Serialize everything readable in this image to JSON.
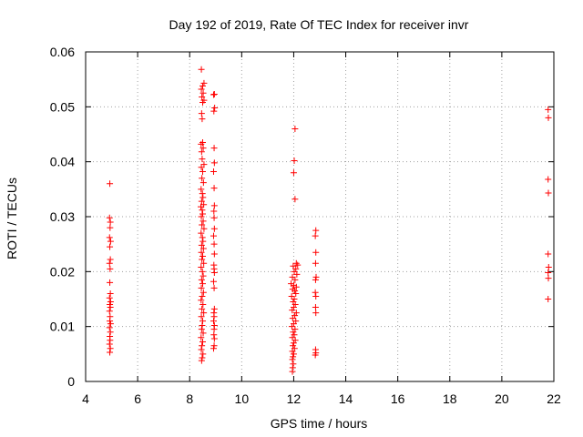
{
  "chart_data": {
    "type": "scatter",
    "title": "Day 192 of 2019, Rate Of TEC Index for receiver invr",
    "xlabel": "GPS time / hours",
    "ylabel": "ROTI / TECUs",
    "xlim": [
      4,
      22
    ],
    "ylim": [
      0,
      0.06
    ],
    "xticks": [
      4,
      6,
      8,
      10,
      12,
      14,
      16,
      18,
      20,
      22
    ],
    "yticks": [
      0,
      0.01,
      0.02,
      0.03,
      0.04,
      0.05,
      0.06
    ],
    "xtick_labels": [
      "4",
      "6",
      "8",
      "10",
      "12",
      "14",
      "16",
      "18",
      "20",
      "22"
    ],
    "ytick_labels": [
      "0",
      "0.01",
      "0.02",
      "0.03",
      "0.04",
      "0.05",
      "0.06"
    ],
    "grid": true,
    "marker": "plus",
    "series": [
      {
        "name": "ROTI",
        "color": "#ff0000",
        "points": [
          [
            4.93,
            0.036
          ],
          [
            4.92,
            0.0298
          ],
          [
            4.95,
            0.029
          ],
          [
            4.94,
            0.028
          ],
          [
            4.92,
            0.0262
          ],
          [
            4.96,
            0.0255
          ],
          [
            4.93,
            0.0245
          ],
          [
            4.95,
            0.0222
          ],
          [
            4.92,
            0.0215
          ],
          [
            4.94,
            0.0205
          ],
          [
            4.93,
            0.018
          ],
          [
            4.95,
            0.016
          ],
          [
            4.92,
            0.0152
          ],
          [
            4.96,
            0.0145
          ],
          [
            4.93,
            0.014
          ],
          [
            4.95,
            0.0135
          ],
          [
            4.92,
            0.0128
          ],
          [
            4.94,
            0.0118
          ],
          [
            4.93,
            0.011
          ],
          [
            4.96,
            0.0105
          ],
          [
            4.92,
            0.0098
          ],
          [
            4.95,
            0.009
          ],
          [
            4.93,
            0.0082
          ],
          [
            4.94,
            0.0075
          ],
          [
            4.92,
            0.0068
          ],
          [
            4.95,
            0.006
          ],
          [
            4.93,
            0.0053
          ],
          [
            8.45,
            0.0568
          ],
          [
            8.55,
            0.0543
          ],
          [
            8.5,
            0.0538
          ],
          [
            8.45,
            0.0532
          ],
          [
            8.52,
            0.0525
          ],
          [
            8.47,
            0.0518
          ],
          [
            8.55,
            0.0512
          ],
          [
            8.5,
            0.0508
          ],
          [
            8.46,
            0.0488
          ],
          [
            8.48,
            0.0478
          ],
          [
            8.5,
            0.0435
          ],
          [
            8.44,
            0.0432
          ],
          [
            8.52,
            0.0425
          ],
          [
            8.46,
            0.0418
          ],
          [
            8.48,
            0.0405
          ],
          [
            8.55,
            0.0395
          ],
          [
            8.45,
            0.039
          ],
          [
            8.5,
            0.0382
          ],
          [
            8.47,
            0.037
          ],
          [
            8.53,
            0.0362
          ],
          [
            8.44,
            0.035
          ],
          [
            8.49,
            0.0342
          ],
          [
            8.51,
            0.0335
          ],
          [
            8.46,
            0.0328
          ],
          [
            8.54,
            0.0322
          ],
          [
            8.43,
            0.0318
          ],
          [
            8.48,
            0.0312
          ],
          [
            8.5,
            0.0305
          ],
          [
            8.45,
            0.03
          ],
          [
            8.52,
            0.0292
          ],
          [
            8.47,
            0.0285
          ],
          [
            8.55,
            0.0278
          ],
          [
            8.44,
            0.027
          ],
          [
            8.49,
            0.0262
          ],
          [
            8.51,
            0.0255
          ],
          [
            8.46,
            0.0248
          ],
          [
            8.53,
            0.0242
          ],
          [
            8.45,
            0.0235
          ],
          [
            8.5,
            0.0228
          ],
          [
            8.47,
            0.0222
          ],
          [
            8.54,
            0.0215
          ],
          [
            8.44,
            0.0208
          ],
          [
            8.49,
            0.02
          ],
          [
            8.52,
            0.0192
          ],
          [
            8.46,
            0.0185
          ],
          [
            8.5,
            0.0178
          ],
          [
            8.45,
            0.017
          ],
          [
            8.53,
            0.0162
          ],
          [
            8.48,
            0.0155
          ],
          [
            8.44,
            0.0148
          ],
          [
            8.51,
            0.014
          ],
          [
            8.47,
            0.0132
          ],
          [
            8.54,
            0.0125
          ],
          [
            8.45,
            0.0118
          ],
          [
            8.5,
            0.011
          ],
          [
            8.48,
            0.0102
          ],
          [
            8.46,
            0.0095
          ],
          [
            8.52,
            0.0088
          ],
          [
            8.44,
            0.008
          ],
          [
            8.5,
            0.0072
          ],
          [
            8.47,
            0.0065
          ],
          [
            8.45,
            0.0058
          ],
          [
            8.51,
            0.005
          ],
          [
            8.48,
            0.0043
          ],
          [
            8.46,
            0.0038
          ],
          [
            8.95,
            0.0523
          ],
          [
            8.92,
            0.0522
          ],
          [
            8.96,
            0.0498
          ],
          [
            8.93,
            0.0492
          ],
          [
            8.94,
            0.0425
          ],
          [
            8.95,
            0.0398
          ],
          [
            8.92,
            0.0382
          ],
          [
            8.94,
            0.0352
          ],
          [
            8.95,
            0.032
          ],
          [
            8.93,
            0.031
          ],
          [
            8.94,
            0.0298
          ],
          [
            8.95,
            0.0278
          ],
          [
            8.92,
            0.0265
          ],
          [
            8.94,
            0.025
          ],
          [
            8.95,
            0.0232
          ],
          [
            8.93,
            0.0212
          ],
          [
            8.94,
            0.0205
          ],
          [
            8.95,
            0.0198
          ],
          [
            8.92,
            0.0182
          ],
          [
            8.94,
            0.017
          ],
          [
            8.95,
            0.0132
          ],
          [
            8.93,
            0.0125
          ],
          [
            8.94,
            0.0118
          ],
          [
            8.92,
            0.011
          ],
          [
            8.95,
            0.0102
          ],
          [
            8.94,
            0.0095
          ],
          [
            8.93,
            0.0085
          ],
          [
            8.95,
            0.0078
          ],
          [
            8.94,
            0.0065
          ],
          [
            8.92,
            0.006
          ],
          [
            12.05,
            0.046
          ],
          [
            12.02,
            0.0402
          ],
          [
            12.0,
            0.038
          ],
          [
            12.05,
            0.0332
          ],
          [
            12.1,
            0.0215
          ],
          [
            12.15,
            0.0212
          ],
          [
            11.98,
            0.021
          ],
          [
            12.08,
            0.0205
          ],
          [
            12.02,
            0.02
          ],
          [
            12.12,
            0.0195
          ],
          [
            11.95,
            0.019
          ],
          [
            12.05,
            0.0185
          ],
          [
            11.9,
            0.0178
          ],
          [
            12.0,
            0.0175
          ],
          [
            12.1,
            0.0172
          ],
          [
            11.96,
            0.0168
          ],
          [
            12.04,
            0.0165
          ],
          [
            12.08,
            0.016
          ],
          [
            11.92,
            0.0155
          ],
          [
            12.02,
            0.015
          ],
          [
            11.98,
            0.0145
          ],
          [
            12.06,
            0.014
          ],
          [
            12.0,
            0.0135
          ],
          [
            11.94,
            0.013
          ],
          [
            12.1,
            0.0125
          ],
          [
            12.04,
            0.012
          ],
          [
            11.96,
            0.0115
          ],
          [
            12.08,
            0.011
          ],
          [
            12.0,
            0.0105
          ],
          [
            11.93,
            0.01
          ],
          [
            12.05,
            0.0095
          ],
          [
            11.98,
            0.009
          ],
          [
            12.02,
            0.0085
          ],
          [
            11.95,
            0.008
          ],
          [
            12.06,
            0.0075
          ],
          [
            12.0,
            0.007
          ],
          [
            11.97,
            0.0065
          ],
          [
            12.03,
            0.006
          ],
          [
            11.95,
            0.0055
          ],
          [
            12.0,
            0.005
          ],
          [
            11.97,
            0.0045
          ],
          [
            11.95,
            0.004
          ],
          [
            11.98,
            0.0032
          ],
          [
            11.96,
            0.0025
          ],
          [
            11.95,
            0.0018
          ],
          [
            12.85,
            0.0275
          ],
          [
            12.83,
            0.0265
          ],
          [
            12.85,
            0.0235
          ],
          [
            12.84,
            0.0215
          ],
          [
            12.86,
            0.019
          ],
          [
            12.84,
            0.0185
          ],
          [
            12.83,
            0.0162
          ],
          [
            12.85,
            0.0155
          ],
          [
            12.84,
            0.0135
          ],
          [
            12.85,
            0.0125
          ],
          [
            12.84,
            0.0058
          ],
          [
            12.85,
            0.0052
          ],
          [
            12.83,
            0.0048
          ],
          [
            21.78,
            0.0495
          ],
          [
            21.79,
            0.048
          ],
          [
            21.78,
            0.0368
          ],
          [
            21.79,
            0.0343
          ],
          [
            21.78,
            0.0232
          ],
          [
            21.8,
            0.0208
          ],
          [
            21.78,
            0.0198
          ],
          [
            21.79,
            0.0188
          ],
          [
            21.78,
            0.015
          ]
        ]
      }
    ]
  }
}
